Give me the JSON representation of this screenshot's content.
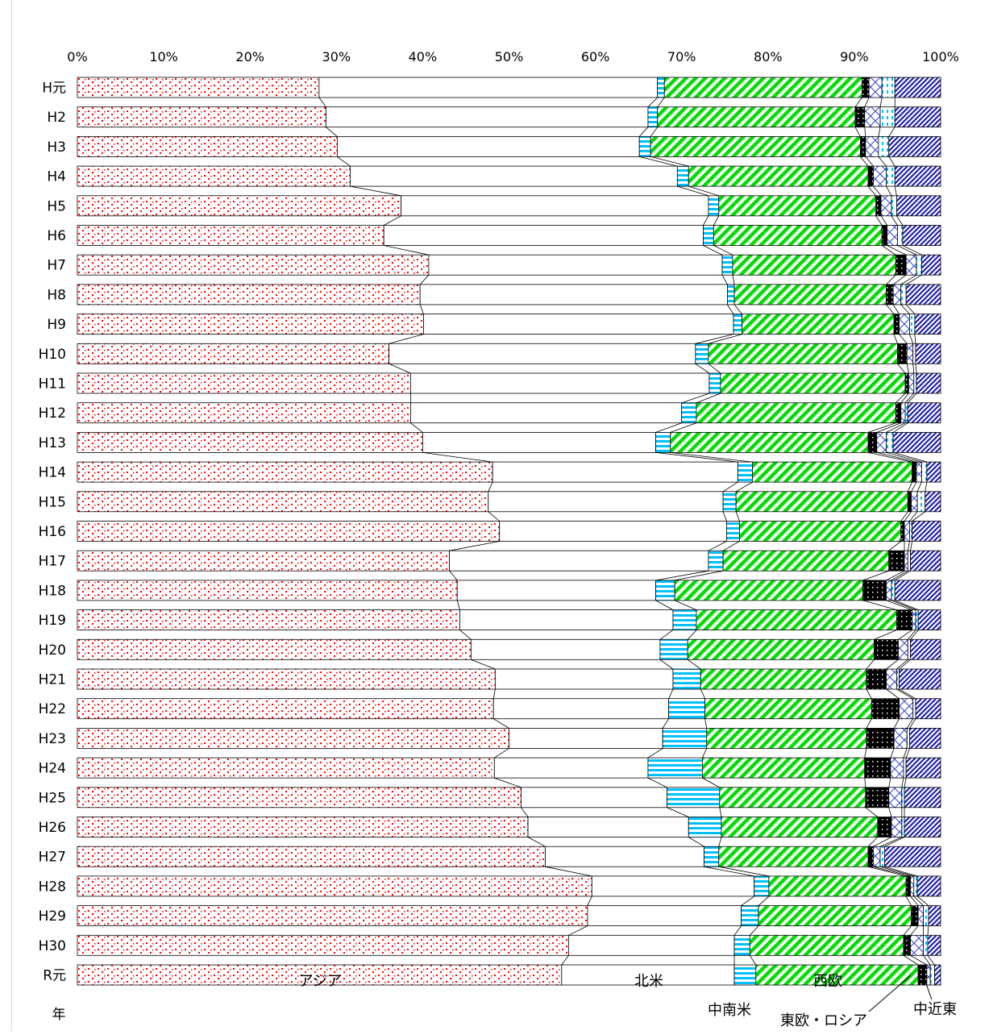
{
  "chart_data": {
    "type": "bar",
    "stacked": true,
    "percent": true,
    "orientation": "horizontal",
    "x_ticks": [
      "0%",
      "10%",
      "20%",
      "30%",
      "40%",
      "50%",
      "60%",
      "70%",
      "80%",
      "90%",
      "100%"
    ],
    "xlim": [
      0,
      100
    ],
    "ylabel": "年",
    "categories": [
      "H元",
      "H2",
      "H3",
      "H4",
      "H5",
      "H6",
      "H7",
      "H8",
      "H9",
      "H10",
      "H11",
      "H12",
      "H13",
      "H14",
      "H15",
      "H16",
      "H17",
      "H18",
      "H19",
      "H20",
      "H21",
      "H22",
      "H23",
      "H24",
      "H25",
      "H26",
      "H27",
      "H28",
      "H29",
      "H30",
      "R元"
    ],
    "series": [
      {
        "name": "アジア",
        "color": "#ff0000",
        "pattern": "dots",
        "values": [
          28.0,
          28.8,
          30.1,
          31.6,
          37.5,
          35.5,
          40.7,
          39.7,
          40.1,
          36.1,
          38.6,
          38.6,
          40.0,
          48.1,
          47.6,
          48.9,
          43.1,
          44.0,
          44.3,
          45.6,
          48.4,
          48.2,
          50.0,
          48.3,
          51.4,
          52.2,
          54.2,
          59.6,
          59.1,
          56.9,
          56.1
        ]
      },
      {
        "name": "北米",
        "color": "#ffffff",
        "pattern": "none",
        "values": [
          39.2,
          37.3,
          35.0,
          37.9,
          35.6,
          37.0,
          34.0,
          35.6,
          35.9,
          35.5,
          34.6,
          31.4,
          27.0,
          28.4,
          27.2,
          26.3,
          30.0,
          23.0,
          24.7,
          21.9,
          20.6,
          20.3,
          17.8,
          17.8,
          16.9,
          18.6,
          18.4,
          18.8,
          17.8,
          19.2,
          20.0
        ]
      },
      {
        "name": "中南米",
        "color": "#00c0ff",
        "pattern": "horizontal-stripes",
        "values": [
          0.8,
          1.1,
          1.3,
          1.3,
          1.2,
          1.2,
          1.2,
          0.8,
          1.0,
          1.5,
          1.3,
          1.7,
          1.7,
          1.7,
          1.5,
          1.5,
          1.7,
          2.2,
          2.7,
          3.2,
          3.2,
          4.2,
          5.1,
          6.3,
          6.1,
          3.8,
          1.7,
          1.7,
          2.0,
          1.8,
          2.5
        ]
      },
      {
        "name": "西欧",
        "color": "#00dd00",
        "pattern": "diagonal-stripes",
        "values": [
          22.9,
          22.9,
          24.3,
          20.8,
          18.2,
          19.5,
          18.9,
          17.6,
          17.6,
          21.9,
          21.4,
          23.1,
          22.9,
          18.5,
          19.9,
          18.7,
          19.2,
          21.8,
          23.2,
          21.6,
          19.2,
          19.3,
          18.5,
          18.8,
          16.9,
          18.1,
          17.3,
          15.9,
          17.7,
          17.8,
          18.8
        ]
      },
      {
        "name": "東欧・ロシア",
        "color": "#000000",
        "pattern": "dots-dark",
        "values": [
          0.8,
          1.1,
          0.6,
          0.6,
          0.6,
          0.6,
          1.2,
          0.8,
          0.6,
          1.1,
          0.4,
          0.6,
          1.0,
          0.5,
          0.4,
          0.4,
          1.8,
          2.7,
          1.8,
          2.8,
          2.3,
          3.2,
          3.2,
          3.0,
          2.7,
          1.6,
          0.6,
          0.5,
          0.8,
          0.8,
          1.0
        ]
      },
      {
        "name": "中近東",
        "color": "#0000cc",
        "pattern": "crosshatch",
        "values": [
          1.5,
          1.8,
          1.5,
          1.5,
          1.2,
          1.2,
          1.2,
          0.9,
          1.2,
          0.7,
          0.6,
          0.5,
          1.1,
          0.6,
          0.7,
          0.6,
          0.4,
          0.6,
          0.4,
          1.1,
          1.2,
          1.6,
          1.5,
          1.5,
          1.5,
          1.2,
          0.8,
          0.4,
          0.6,
          1.5,
          0.4
        ]
      },
      {
        "name": "",
        "color": "#00c0ff",
        "pattern": "vertical-dashes",
        "values": [
          1.5,
          1.7,
          1.2,
          1.0,
          0.6,
          0.6,
          0.6,
          0.6,
          0.6,
          0.3,
          0.3,
          0.3,
          0.8,
          0.6,
          0.9,
          0.3,
          0.3,
          0.4,
          0.3,
          0.3,
          0.3,
          0.3,
          0.3,
          0.3,
          0.3,
          0.3,
          0.5,
          0.4,
          0.6,
          0.5,
          0.5
        ]
      },
      {
        "name": "",
        "color": "#0000aa",
        "pattern": "diagonal-hatch",
        "values": [
          5.3,
          5.3,
          6.0,
          5.3,
          5.1,
          4.4,
          2.2,
          4.0,
          3.0,
          2.9,
          2.8,
          3.8,
          5.5,
          1.6,
          1.8,
          3.3,
          3.5,
          5.3,
          2.6,
          3.5,
          4.8,
          2.9,
          3.6,
          4.0,
          4.2,
          4.2,
          6.5,
          2.7,
          1.4,
          1.5,
          0.7
        ]
      }
    ]
  },
  "callouts": {
    "asia": "アジア",
    "north_america": "北米",
    "latin_america": "中南米",
    "western_europe": "西欧",
    "eastern_europe_russia": "東欧・ロシア",
    "middle_east": "中近東"
  }
}
